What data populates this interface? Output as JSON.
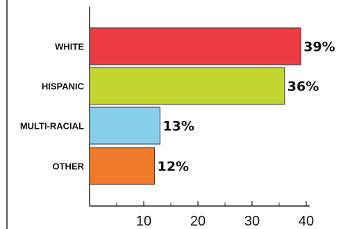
{
  "chart_data": {
    "type": "bar",
    "orientation": "horizontal",
    "categories": [
      "WHITE",
      "HISPANIC",
      "MULTI-RACIAL",
      "OTHER"
    ],
    "values": [
      39,
      36,
      13,
      12
    ],
    "value_labels": [
      "39%",
      "36%",
      "13%",
      "12%"
    ],
    "colors": [
      "#ee3d42",
      "#c3d630",
      "#87ceeb",
      "#f07a2a"
    ],
    "x_ticks": [
      10,
      20,
      30,
      40
    ],
    "xlim": [
      0,
      40
    ],
    "title": "",
    "xlabel": "",
    "ylabel": "",
    "grid": false,
    "legend": "none"
  }
}
